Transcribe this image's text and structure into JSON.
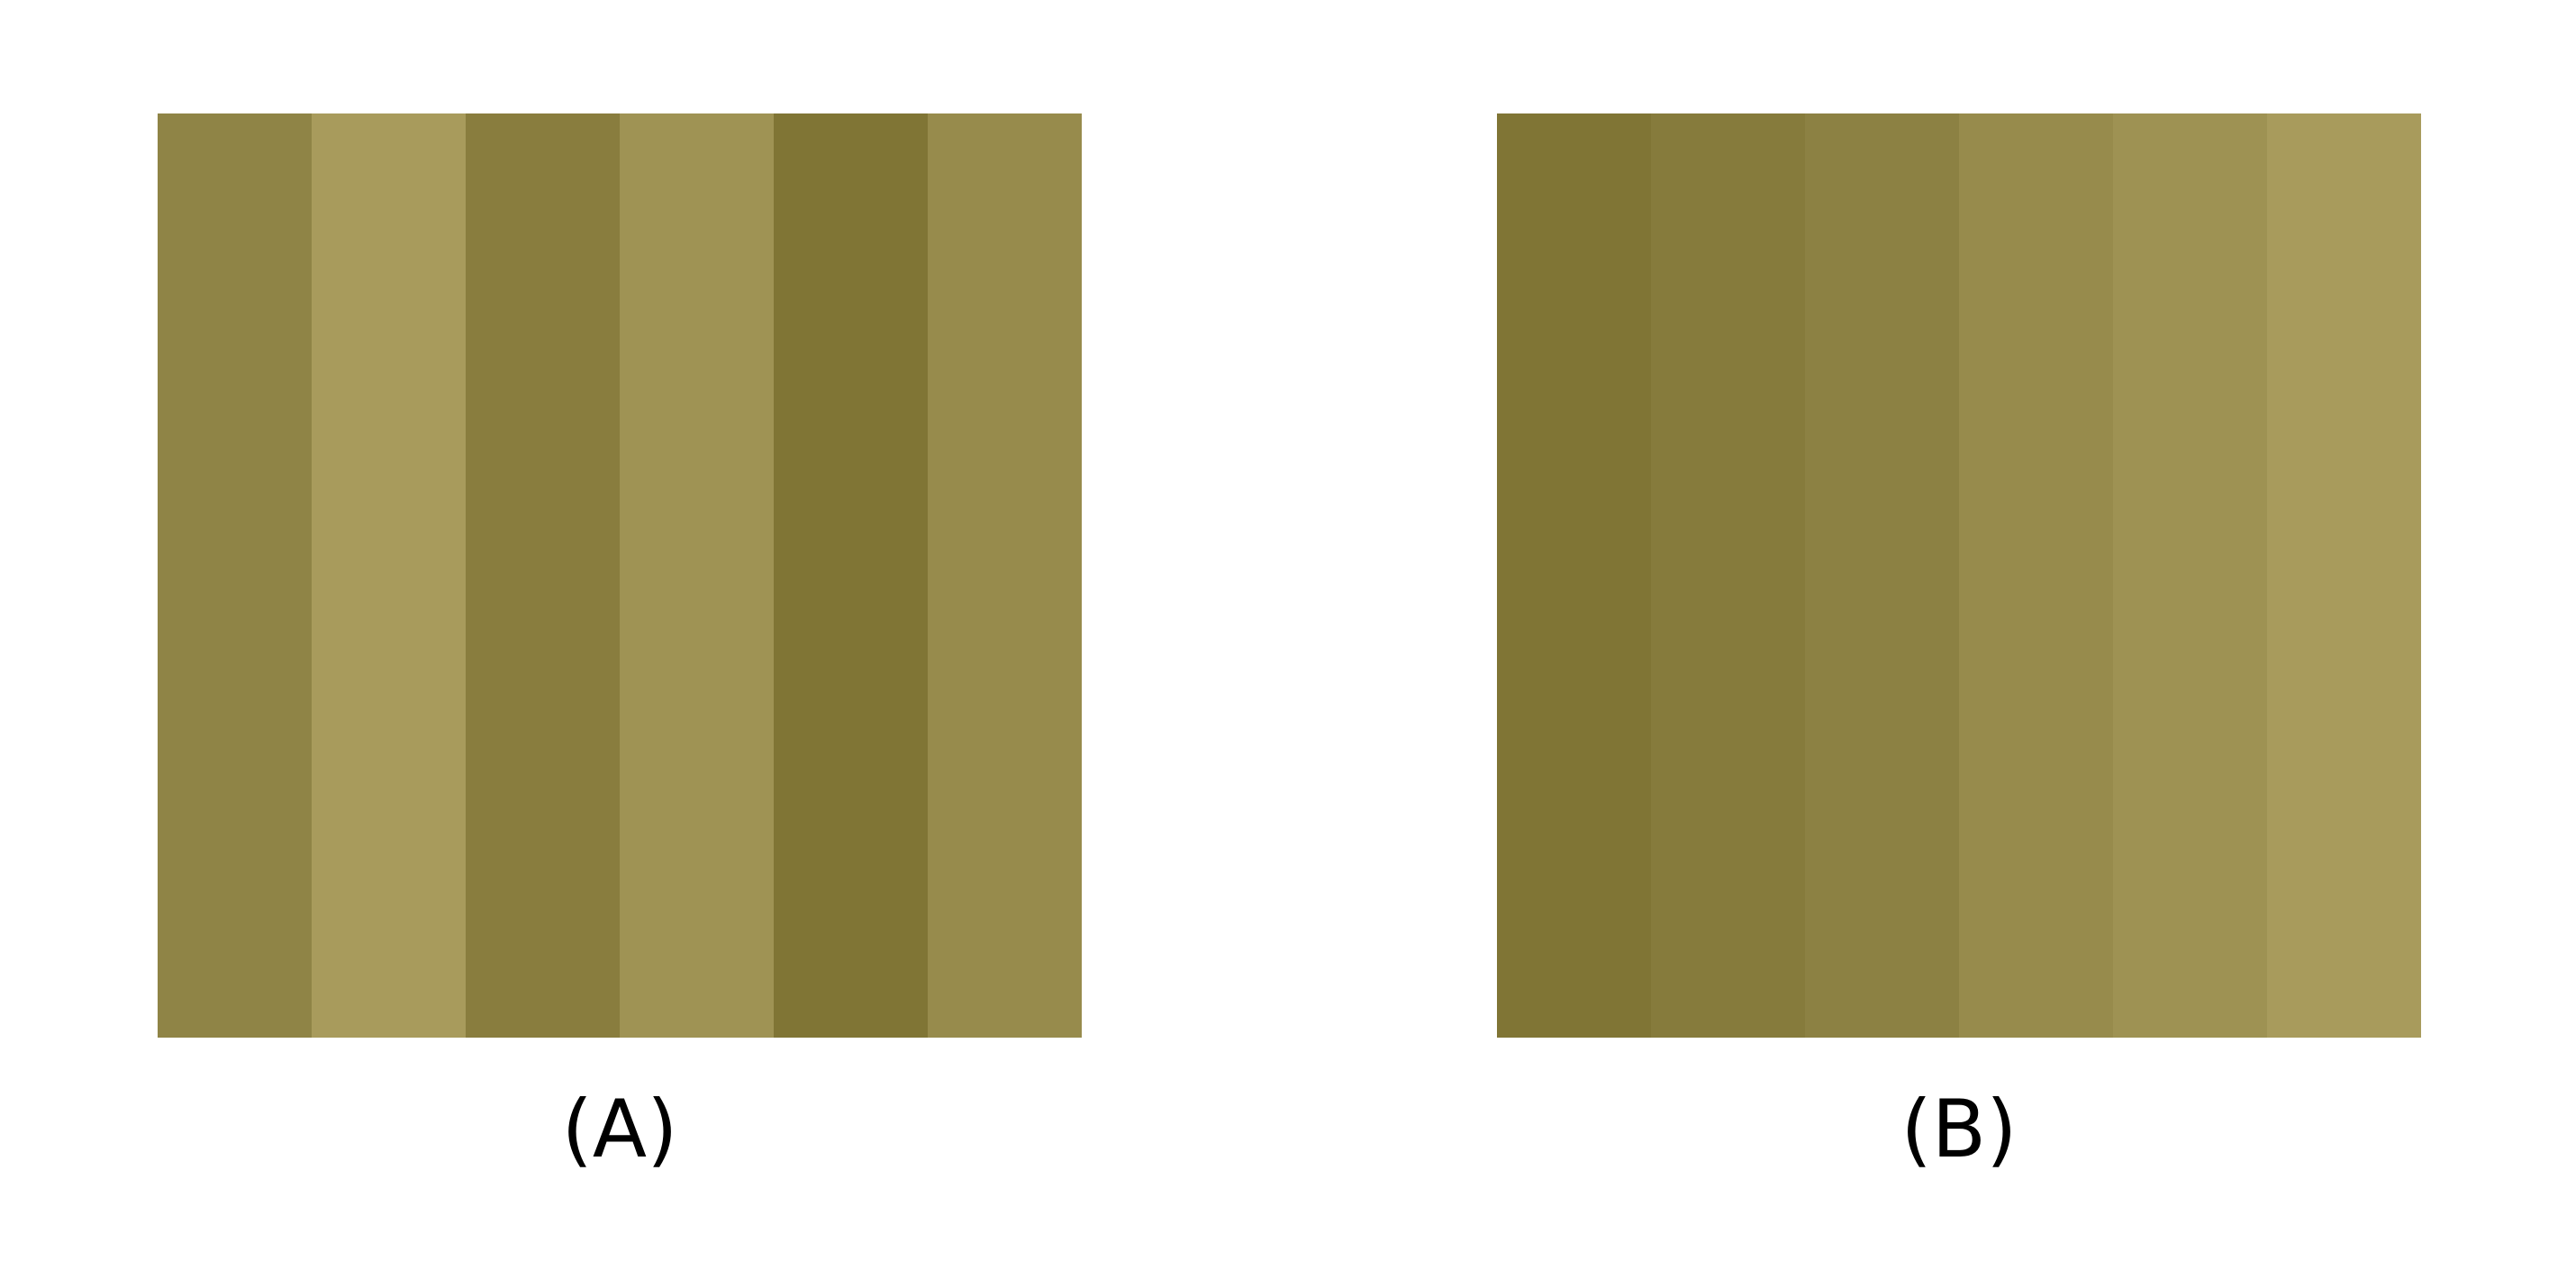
{
  "panels": [
    {
      "label": "(A)",
      "stripes": [
        "#8f8446",
        "#a89b5c",
        "#897d3e",
        "#9f9354",
        "#807535",
        "#978b4c"
      ]
    },
    {
      "label": "(B)",
      "stripes": [
        "#807535",
        "#867b3c",
        "#8c8143",
        "#978b4c",
        "#9e9253",
        "#a89b5c"
      ]
    }
  ]
}
